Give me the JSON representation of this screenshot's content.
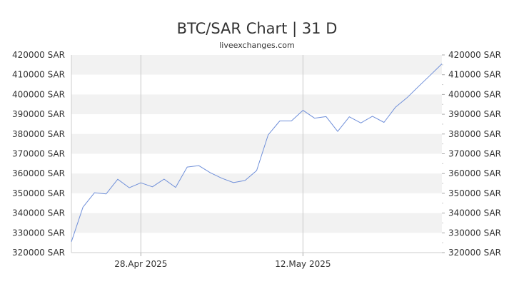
{
  "chart_data": {
    "type": "line",
    "title": "BTC/SAR Chart | 31 D",
    "subtitle": "liveexchanges.com",
    "xlabel": "",
    "ylabel": "",
    "ylim": [
      320000,
      420000
    ],
    "y_ticks": [
      "420000 SAR",
      "410000 SAR",
      "400000 SAR",
      "390000 SAR",
      "380000 SAR",
      "370000 SAR",
      "360000 SAR",
      "350000 SAR",
      "340000 SAR",
      "330000 SAR",
      "320000 SAR"
    ],
    "x_ticks": [
      "28.Apr 2025",
      "12.May 2025"
    ],
    "grid": "alternating horizontal bands, vertical lines at x ticks",
    "series": [
      {
        "color": "#6f8fd9",
        "values": [
          325500,
          343000,
          350300,
          349700,
          357100,
          352800,
          355300,
          353300,
          357200,
          353000,
          363300,
          364000,
          360400,
          357600,
          355400,
          356500,
          361500,
          379600,
          386600,
          386600,
          392000,
          388000,
          388800,
          381300,
          388700,
          385600,
          389000,
          385900,
          393600,
          398400,
          404200,
          409800,
          415500
        ]
      }
    ]
  }
}
